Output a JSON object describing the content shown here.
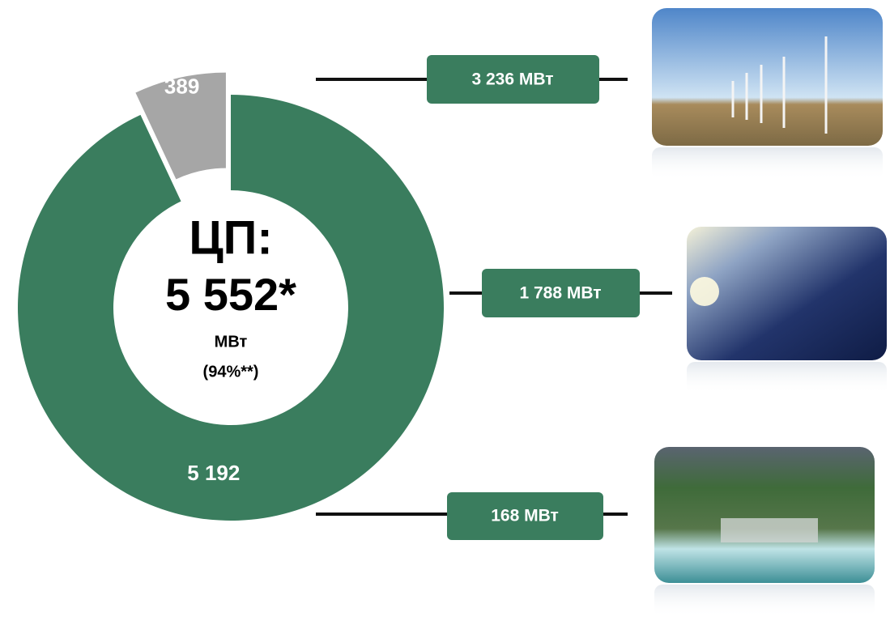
{
  "chart_data": {
    "type": "donut",
    "values": [
      5192,
      389
    ],
    "value_labels": [
      "5 192",
      "389"
    ],
    "colors": [
      "#3a7d5e",
      "#a6a6a6"
    ],
    "center_text": [
      "ЦП:",
      "5 552*",
      "МВт",
      "(94%**)"
    ],
    "callouts": [
      "3 236 МВт",
      "1 788 МВт",
      "168 МВт"
    ]
  }
}
